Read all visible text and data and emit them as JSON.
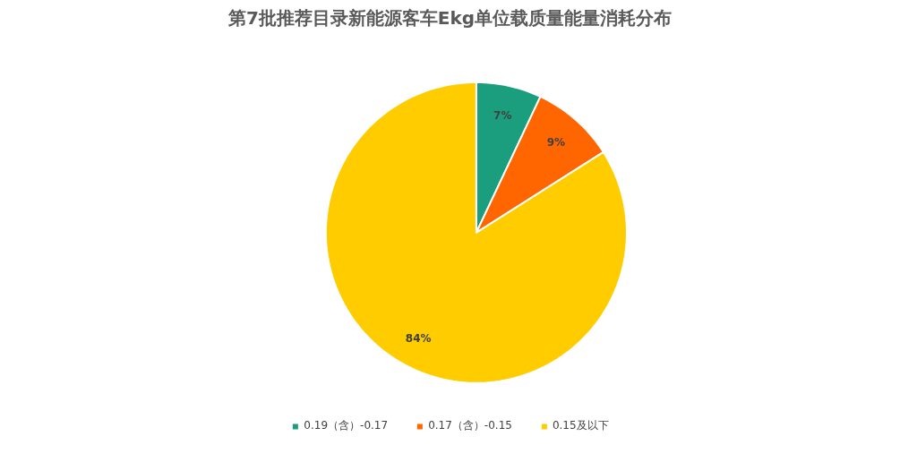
{
  "chart_data": {
    "type": "pie",
    "title": "第7批推荐目录新能源客车Ekg单位载质量能量消耗分布",
    "categories": [
      "0.19（含）-0.17",
      "0.17（含）-0.15",
      "0.15及以下"
    ],
    "values": [
      7,
      9,
      84
    ],
    "colors": [
      "#1b9e7d",
      "#ff6600",
      "#ffcc00"
    ],
    "value_labels": [
      "7%",
      "9%",
      "84%"
    ],
    "legend": "bottom"
  }
}
